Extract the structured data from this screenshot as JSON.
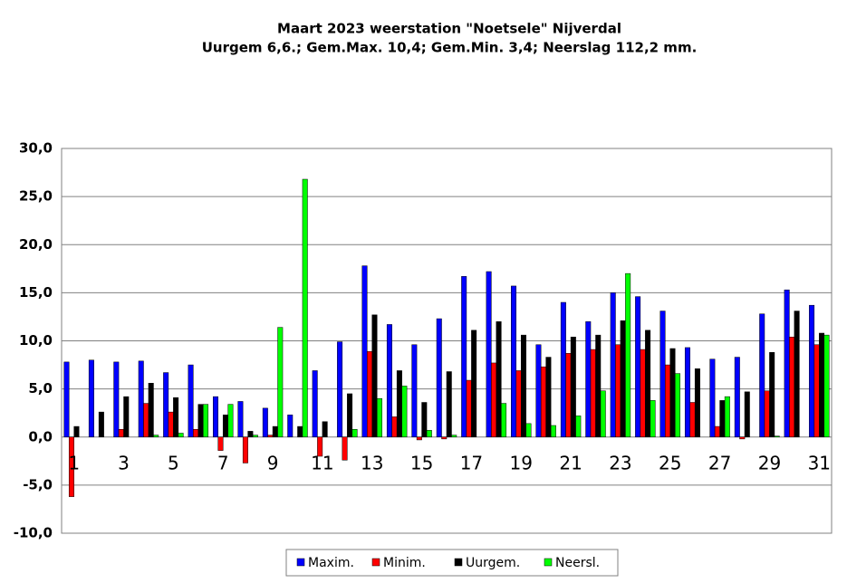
{
  "chart_data": {
    "type": "bar",
    "title": "Maart 2023  weerstation \"Noetsele\" Nijverdal",
    "subtitle": "Uurgem 6,6.; Gem.Max. 10,4; Gem.Min. 3,4; Neerslag 112,2 mm.",
    "categories": [
      "1",
      null,
      "3",
      null,
      "5",
      null,
      "7",
      null,
      "9",
      null,
      "11",
      null,
      "13",
      null,
      "15",
      null,
      "17",
      null,
      "19",
      null,
      "21",
      null,
      "23",
      null,
      "25",
      null,
      "27",
      null,
      "29",
      null,
      "31"
    ],
    "series": [
      {
        "name": "Maxim.",
        "color": "#0000ff",
        "values": [
          7.8,
          8.0,
          7.8,
          7.9,
          6.7,
          7.5,
          4.2,
          3.7,
          3.0,
          2.3,
          6.9,
          9.9,
          17.8,
          11.7,
          9.6,
          12.3,
          16.7,
          17.2,
          15.7,
          9.6,
          14.0,
          12.0,
          15.0,
          14.6,
          13.1,
          9.3,
          8.1,
          8.3,
          12.8,
          15.3,
          13.7
        ]
      },
      {
        "name": "Minim.",
        "color": "#ff0000",
        "values": [
          -6.2,
          0,
          0.8,
          3.5,
          2.6,
          0.8,
          -1.4,
          -2.7,
          0.2,
          0,
          -2.0,
          -2.4,
          8.9,
          2.1,
          -0.3,
          -0.2,
          5.9,
          7.7,
          6.9,
          7.3,
          8.7,
          9.1,
          9.6,
          9.1,
          7.5,
          3.6,
          1.1,
          -0.2,
          4.8,
          10.4,
          9.6
        ]
      },
      {
        "name": "Uurgem.",
        "color": "#000000",
        "values": [
          1.1,
          2.6,
          4.2,
          5.6,
          4.1,
          3.4,
          2.3,
          0.6,
          1.1,
          1.1,
          1.6,
          4.5,
          12.7,
          6.9,
          3.6,
          6.8,
          11.1,
          12.0,
          10.6,
          8.3,
          10.4,
          10.6,
          12.1,
          11.1,
          9.2,
          7.1,
          3.8,
          4.7,
          8.8,
          13.1,
          10.8
        ]
      },
      {
        "name": "Neersl.",
        "color": "#00ff00",
        "values": [
          0,
          0,
          0,
          0.2,
          0.4,
          3.4,
          3.4,
          0.2,
          11.4,
          26.8,
          0,
          0.8,
          4.0,
          5.3,
          0.7,
          0.2,
          0,
          3.5,
          1.4,
          1.2,
          2.2,
          4.8,
          17.0,
          3.8,
          6.6,
          0,
          4.2,
          0,
          0.1,
          0,
          10.6
        ]
      }
    ],
    "ylim": [
      -10,
      30
    ],
    "yticks": [
      {
        "value": -10,
        "label": "-10,0"
      },
      {
        "value": -5,
        "label": "-5,0"
      },
      {
        "value": 0,
        "label": "0,0"
      },
      {
        "value": 5,
        "label": "5,0"
      },
      {
        "value": 10,
        "label": "10,0"
      },
      {
        "value": 15,
        "label": "15,0"
      },
      {
        "value": 20,
        "label": "20,0"
      },
      {
        "value": 25,
        "label": "25,0"
      },
      {
        "value": 30,
        "label": "30,0"
      }
    ],
    "grid": true
  }
}
